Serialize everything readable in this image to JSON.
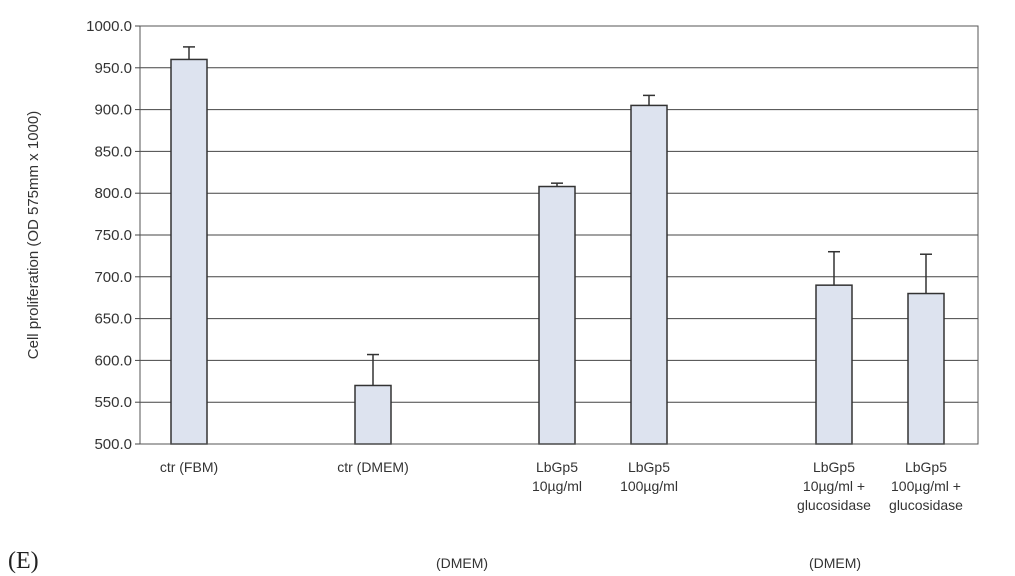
{
  "panel_label": "(E)",
  "group_labels": [
    "(DMEM)",
    "(DMEM)"
  ],
  "chart_data": {
    "type": "bar",
    "ylabel": "Cell proliferation (OD 575mm x 1000)",
    "ylim": [
      500,
      1000
    ],
    "yticks": [
      "500.0",
      "550.0",
      "600.0",
      "650.0",
      "700.0",
      "750.0",
      "800.0",
      "850.0",
      "900.0",
      "950.0",
      "1000.0"
    ],
    "grid": true,
    "categories": [
      [
        "ctr (FBM)"
      ],
      [
        "ctr (DMEM)"
      ],
      [
        "LbGp5",
        "10µg/ml"
      ],
      [
        "LbGp5",
        "100µg/ml"
      ],
      [
        "LbGp5",
        "10µg/ml +",
        "glucosidase"
      ],
      [
        "LbGp5",
        "100µg/ml +",
        "glucosidase"
      ]
    ],
    "values": [
      960,
      570,
      808,
      905,
      690,
      680
    ],
    "errors": [
      15,
      37,
      4,
      12,
      40,
      47
    ],
    "bar_color": "#dde3ef"
  }
}
